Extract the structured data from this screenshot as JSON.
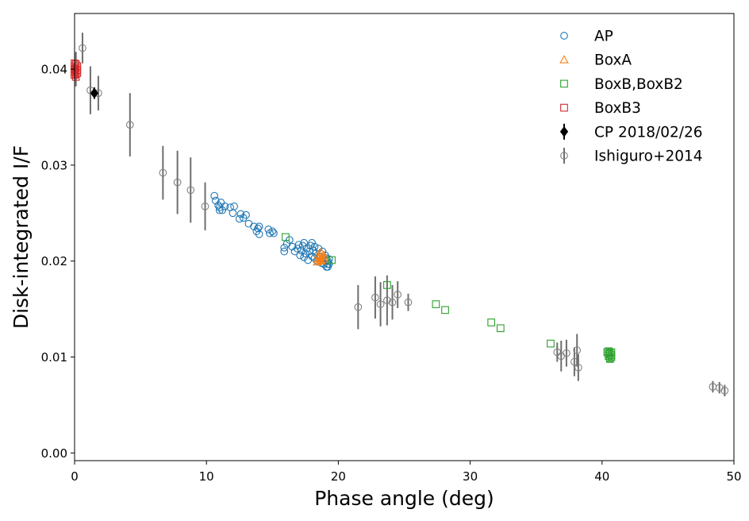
{
  "chart_data": {
    "type": "scatter",
    "xlabel": "Phase angle (deg)",
    "ylabel": "Disk-integrated I/F",
    "xlim": [
      0,
      50
    ],
    "ylim": [
      -0.0008,
      0.0458
    ],
    "xticks": [
      0,
      10,
      20,
      30,
      40,
      50
    ],
    "xtick_labels": [
      "0",
      "10",
      "20",
      "30",
      "40",
      "50"
    ],
    "yticks": [
      0.0,
      0.01,
      0.02,
      0.03,
      0.04
    ],
    "ytick_labels": [
      "0.00",
      "0.01",
      "0.02",
      "0.03",
      "0.04"
    ],
    "grid": false,
    "legend_position": "top-right",
    "series": [
      {
        "name": "AP",
        "marker": "circle-open",
        "color": "#1f77b4",
        "points": [
          [
            10.6,
            0.0268
          ],
          [
            10.7,
            0.0263
          ],
          [
            10.9,
            0.0258
          ],
          [
            11.0,
            0.0253
          ],
          [
            11.0,
            0.0256
          ],
          [
            11.1,
            0.0261
          ],
          [
            11.2,
            0.0253
          ],
          [
            11.4,
            0.0257
          ],
          [
            11.8,
            0.0256
          ],
          [
            12.0,
            0.025
          ],
          [
            12.1,
            0.0257
          ],
          [
            12.5,
            0.0244
          ],
          [
            12.6,
            0.0249
          ],
          [
            12.8,
            0.0245
          ],
          [
            13.0,
            0.0248
          ],
          [
            13.2,
            0.0239
          ],
          [
            13.6,
            0.0236
          ],
          [
            13.8,
            0.0231
          ],
          [
            13.9,
            0.0234
          ],
          [
            14.0,
            0.0228
          ],
          [
            14.0,
            0.0236
          ],
          [
            14.7,
            0.0233
          ],
          [
            14.8,
            0.0229
          ],
          [
            15.0,
            0.0231
          ],
          [
            15.1,
            0.0229
          ],
          [
            15.9,
            0.0214
          ],
          [
            15.9,
            0.021
          ],
          [
            16.1,
            0.0218
          ],
          [
            16.3,
            0.0222
          ],
          [
            16.5,
            0.0215
          ],
          [
            16.7,
            0.021
          ],
          [
            16.9,
            0.0213
          ],
          [
            17.0,
            0.0217
          ],
          [
            17.1,
            0.0206
          ],
          [
            17.2,
            0.0211
          ],
          [
            17.3,
            0.0216
          ],
          [
            17.4,
            0.0204
          ],
          [
            17.4,
            0.0219
          ],
          [
            17.5,
            0.0208
          ],
          [
            17.6,
            0.0213
          ],
          [
            17.7,
            0.0201
          ],
          [
            17.8,
            0.021
          ],
          [
            17.9,
            0.0216
          ],
          [
            18.0,
            0.0205
          ],
          [
            18.0,
            0.0219
          ],
          [
            18.1,
            0.0211
          ],
          [
            18.2,
            0.0203
          ],
          [
            18.2,
            0.0215
          ],
          [
            18.3,
            0.0208
          ],
          [
            18.4,
            0.02
          ],
          [
            18.5,
            0.0213
          ],
          [
            18.6,
            0.0205
          ],
          [
            18.7,
            0.0198
          ],
          [
            18.8,
            0.021
          ],
          [
            18.8,
            0.0203
          ],
          [
            18.9,
            0.0197
          ],
          [
            19.0,
            0.0206
          ],
          [
            19.0,
            0.02
          ],
          [
            19.1,
            0.0194
          ],
          [
            19.1,
            0.0203
          ],
          [
            19.2,
            0.0197
          ],
          [
            19.2,
            0.02
          ],
          [
            19.2,
            0.0194
          ],
          [
            19.3,
            0.0202
          ],
          [
            19.3,
            0.0197
          ]
        ]
      },
      {
        "name": "BoxA",
        "marker": "triangle-open",
        "color": "#ff7f0e",
        "points": [
          [
            18.4,
            0.0199
          ],
          [
            18.5,
            0.0203
          ],
          [
            18.5,
            0.0207
          ],
          [
            18.6,
            0.0201
          ],
          [
            18.6,
            0.0205
          ],
          [
            18.7,
            0.0209
          ],
          [
            18.7,
            0.02
          ],
          [
            18.8,
            0.0204
          ],
          [
            18.9,
            0.0202
          ],
          [
            18.9,
            0.0206
          ]
        ]
      },
      {
        "name": "BoxB,BoxB2",
        "marker": "square-open",
        "color": "#2ca02c",
        "points": [
          [
            16.0,
            0.0225
          ],
          [
            19.5,
            0.0201
          ],
          [
            23.7,
            0.0175
          ],
          [
            27.4,
            0.0155
          ],
          [
            28.1,
            0.0149
          ],
          [
            31.6,
            0.0136
          ],
          [
            32.3,
            0.013
          ],
          [
            36.1,
            0.0114
          ],
          [
            40.4,
            0.0105
          ],
          [
            40.5,
            0.0103
          ],
          [
            40.5,
            0.0101
          ],
          [
            40.6,
            0.0099
          ],
          [
            40.6,
            0.0104
          ],
          [
            40.7,
            0.0102
          ],
          [
            40.7,
            0.01
          ],
          [
            40.5,
            0.0106
          ],
          [
            40.6,
            0.0098
          ],
          [
            40.7,
            0.0105
          ]
        ]
      },
      {
        "name": "BoxB3",
        "marker": "square-open",
        "color": "#d62728",
        "points": [
          [
            0.0,
            0.0406
          ],
          [
            0.0,
            0.0403
          ],
          [
            0.0,
            0.04
          ],
          [
            0.0,
            0.0397
          ],
          [
            0.0,
            0.0394
          ],
          [
            0.1,
            0.0405
          ],
          [
            0.1,
            0.0401
          ],
          [
            0.1,
            0.0398
          ],
          [
            0.1,
            0.0395
          ],
          [
            0.1,
            0.0392
          ],
          [
            0.2,
            0.0403
          ],
          [
            0.2,
            0.0399
          ],
          [
            0.2,
            0.0396
          ]
        ]
      },
      {
        "name": "CP 2018/02/26",
        "marker": "diamond-filled",
        "color": "#000000",
        "points": [
          [
            1.5,
            0.0375
          ]
        ],
        "errors": [
          0.0006
        ]
      },
      {
        "name": "Ishiguro+2014",
        "marker": "circle-open",
        "color": "#808080",
        "points": [
          [
            0.1,
            0.04
          ],
          [
            0.6,
            0.0422
          ],
          [
            1.2,
            0.0378
          ],
          [
            1.8,
            0.0375
          ],
          [
            4.2,
            0.0342
          ],
          [
            6.7,
            0.0292
          ],
          [
            7.8,
            0.0282
          ],
          [
            8.8,
            0.0274
          ],
          [
            9.9,
            0.0257
          ],
          [
            21.5,
            0.0152
          ],
          [
            22.8,
            0.0162
          ],
          [
            23.2,
            0.0155
          ],
          [
            23.7,
            0.0159
          ],
          [
            24.1,
            0.0157
          ],
          [
            24.5,
            0.0165
          ],
          [
            25.3,
            0.0157
          ],
          [
            36.6,
            0.0105
          ],
          [
            36.9,
            0.0101
          ],
          [
            37.3,
            0.0104
          ],
          [
            37.9,
            0.0095
          ],
          [
            38.1,
            0.0107
          ],
          [
            38.2,
            0.0089
          ],
          [
            48.4,
            0.0069
          ],
          [
            48.9,
            0.0068
          ],
          [
            49.3,
            0.0065
          ]
        ],
        "errors": [
          0.0018,
          0.0016,
          0.0025,
          0.0018,
          0.0033,
          0.0028,
          0.0033,
          0.0034,
          0.0025,
          0.0023,
          0.0022,
          0.0023,
          0.0026,
          0.0018,
          0.0014,
          0.0009,
          0.001,
          0.0016,
          0.0014,
          0.0015,
          0.0017,
          0.0014,
          0.0006,
          0.0006,
          0.0006
        ]
      }
    ]
  }
}
